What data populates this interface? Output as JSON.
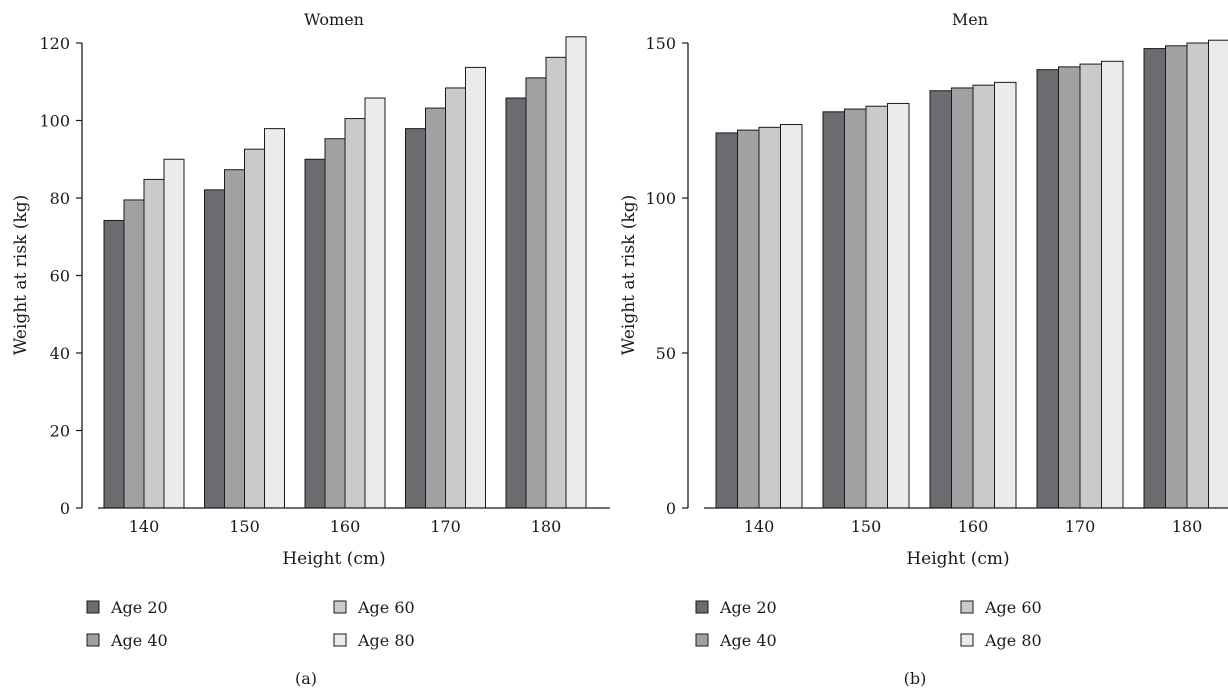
{
  "chart_data": [
    {
      "type": "bar",
      "title": "Women",
      "xlabel": "Height (cm)",
      "ylabel": "Weight at risk (kg)",
      "panel_label": "(a)",
      "categories": [
        "140",
        "150",
        "160",
        "170",
        "180"
      ],
      "ylim": [
        0,
        120
      ],
      "yticks": [
        "0",
        "20",
        "40",
        "60",
        "80",
        "100",
        "120"
      ],
      "grid": false,
      "legend": "bottom",
      "series": [
        {
          "name": "Age 20",
          "color": "#6b6b70",
          "values": [
            74.2,
            82.1,
            90.0,
            97.9,
            105.8
          ]
        },
        {
          "name": "Age 40",
          "color": "#a1a1a4",
          "values": [
            79.5,
            87.3,
            95.3,
            103.2,
            111.0
          ]
        },
        {
          "name": "Age 60",
          "color": "#cacacc",
          "values": [
            84.8,
            92.6,
            100.5,
            108.4,
            116.3
          ]
        },
        {
          "name": "Age 80",
          "color": "#ebebec",
          "values": [
            90.0,
            97.9,
            105.8,
            113.7,
            121.6
          ]
        }
      ]
    },
    {
      "type": "bar",
      "title": "Men",
      "xlabel": "Height (cm)",
      "ylabel": "Weight at risk (kg)",
      "panel_label": "(b)",
      "categories": [
        "140",
        "150",
        "160",
        "170",
        "180"
      ],
      "ylim": [
        0,
        150
      ],
      "yticks": [
        "0",
        "50",
        "100",
        "150"
      ],
      "grid": false,
      "legend": "bottom",
      "series": [
        {
          "name": "Age 20",
          "color": "#6b6b70",
          "values": [
            121.0,
            127.8,
            134.6,
            141.4,
            148.2
          ]
        },
        {
          "name": "Age 40",
          "color": "#a1a1a4",
          "values": [
            121.9,
            128.7,
            135.5,
            142.3,
            149.1
          ]
        },
        {
          "name": "Age 60",
          "color": "#cacacc",
          "values": [
            122.8,
            129.6,
            136.4,
            143.2,
            150.0
          ]
        },
        {
          "name": "Age 80",
          "color": "#ebebec",
          "values": [
            123.7,
            130.5,
            137.3,
            144.1,
            150.9
          ]
        }
      ]
    }
  ]
}
